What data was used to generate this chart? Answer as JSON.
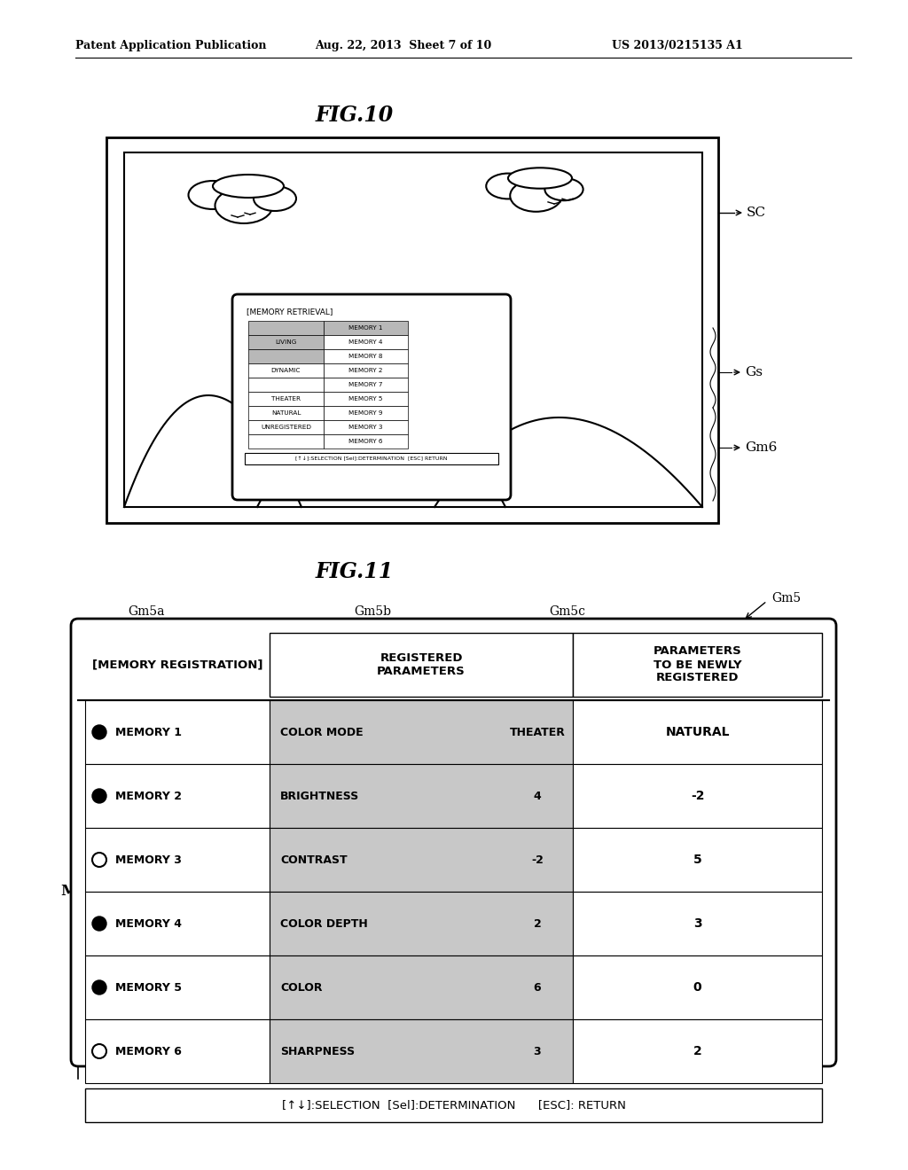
{
  "header_left": "Patent Application Publication",
  "header_mid": "Aug. 22, 2013  Sheet 7 of 10",
  "header_right": "US 2013/0215135 A1",
  "fig10_title": "FIG.10",
  "fig11_title": "FIG.11",
  "fig10_label_sc": "SC",
  "fig10_label_gs": "Gs",
  "fig10_label_gm6": "Gm6",
  "fig11_label_gm5": "Gm5",
  "fig11_label_gm5a": "Gm5a",
  "fig11_label_gm5b": "Gm5b",
  "fig11_label_gm5c": "Gm5c",
  "fig11_label_m": "M",
  "memory_retrieval_title": "[MEMORY RETRIEVAL]",
  "memory_retrieval_rows": [
    [
      "",
      "MEMORY 1"
    ],
    [
      "LIVING",
      "MEMORY 4"
    ],
    [
      "",
      "MEMORY 8"
    ],
    [
      "DYNAMIC",
      "MEMORY 2"
    ],
    [
      "",
      "MEMORY 7"
    ],
    [
      "THEATER",
      "MEMORY 5"
    ],
    [
      "NATURAL",
      "MEMORY 9"
    ],
    [
      "UNREGISTERED",
      "MEMORY 3"
    ],
    [
      "",
      "MEMORY 6"
    ]
  ],
  "memory_retrieval_footer": "[↑↓]:SELECTION [Sel]:DETERMINATION  [ESC] RETURN",
  "memory_reg_header": "[MEMORY REGISTRATION]",
  "memory_reg_col2_header": "REGISTERED\nPARAMETERS",
  "memory_reg_col3_header": "PARAMETERS\nTO BE NEWLY\nREGISTERED",
  "memory_reg_rows": [
    {
      "mem": "MEMORY 1",
      "filled": true,
      "param": "COLOR MODE",
      "val1": "THEATER",
      "val2": "NATURAL"
    },
    {
      "mem": "MEMORY 2",
      "filled": true,
      "param": "BRIGHTNESS",
      "val1": "4",
      "val2": "-2"
    },
    {
      "mem": "MEMORY 3",
      "filled": false,
      "param": "CONTRAST",
      "val1": "-2",
      "val2": "5"
    },
    {
      "mem": "MEMORY 4",
      "filled": true,
      "param": "COLOR DEPTH",
      "val1": "2",
      "val2": "3"
    },
    {
      "mem": "MEMORY 5",
      "filled": true,
      "param": "COLOR",
      "val1": "6",
      "val2": "0"
    },
    {
      "mem": "MEMORY 6",
      "filled": false,
      "param": "SHARPNESS",
      "val1": "3",
      "val2": "2"
    }
  ],
  "memory_reg_footer": "[↑↓]:SELECTION  [Sel]:DETERMINATION      [ESC]: RETURN",
  "bg_color": "#ffffff"
}
